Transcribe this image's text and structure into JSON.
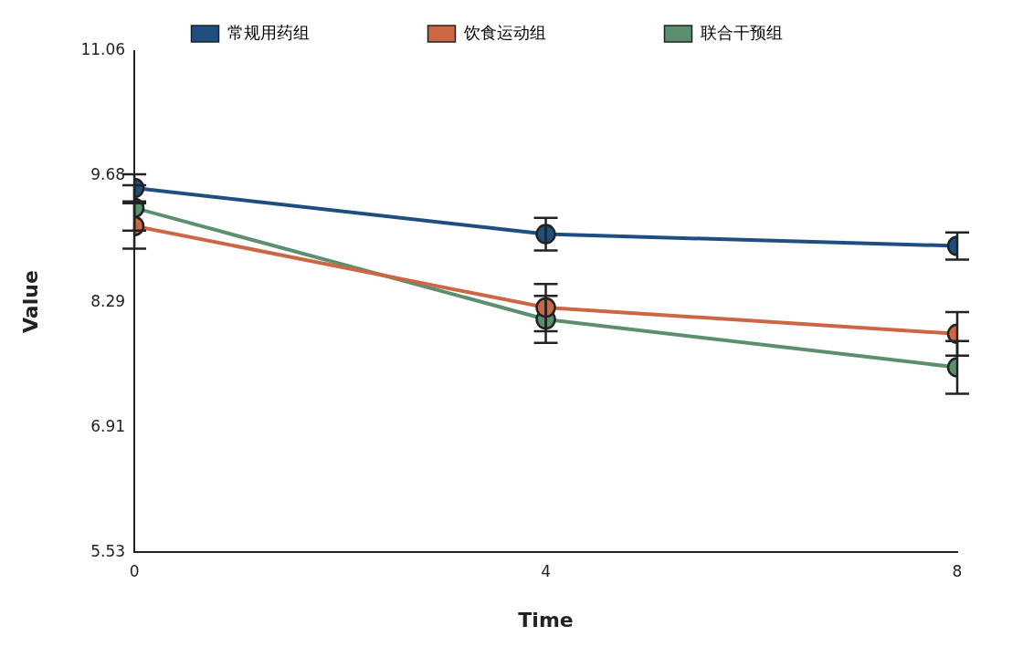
{
  "chart_data": {
    "type": "line",
    "xlabel": "Time",
    "ylabel": "Value",
    "x": [
      0,
      4,
      8
    ],
    "xlim": [
      0,
      8
    ],
    "xticks": [
      0,
      4,
      8
    ],
    "ylim": [
      5.53,
      11.06
    ],
    "yticks": [
      5.53,
      6.91,
      8.29,
      9.68,
      11.06
    ],
    "grid": false,
    "legend": "top",
    "marker": "circle",
    "line_style": "solid",
    "series": [
      {
        "name": "常规用药组",
        "color": "#1f4e80",
        "values": [
          9.55,
          9.04,
          8.91
        ],
        "errors": [
          0.15,
          0.18,
          0.15
        ]
      },
      {
        "name": "饮食运动组",
        "color": "#cc6644",
        "values": [
          9.13,
          8.23,
          7.94
        ],
        "errors": [
          0.25,
          0.26,
          0.24
        ]
      },
      {
        "name": "联合干预组",
        "color": "#5b8f70",
        "values": [
          9.33,
          8.1,
          7.57
        ],
        "errors": [
          0.25,
          0.26,
          0.29
        ]
      }
    ]
  }
}
